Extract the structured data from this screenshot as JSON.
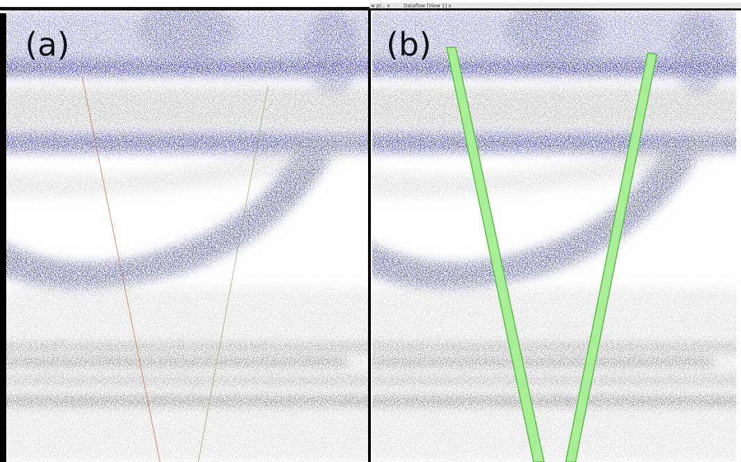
{
  "panels": [
    {
      "label": "(a)"
    },
    {
      "label": "(b)"
    }
  ],
  "tab_bar": {
    "tabs": [
      "w pl... x",
      "Dataflow [View 1]  x"
    ]
  }
}
